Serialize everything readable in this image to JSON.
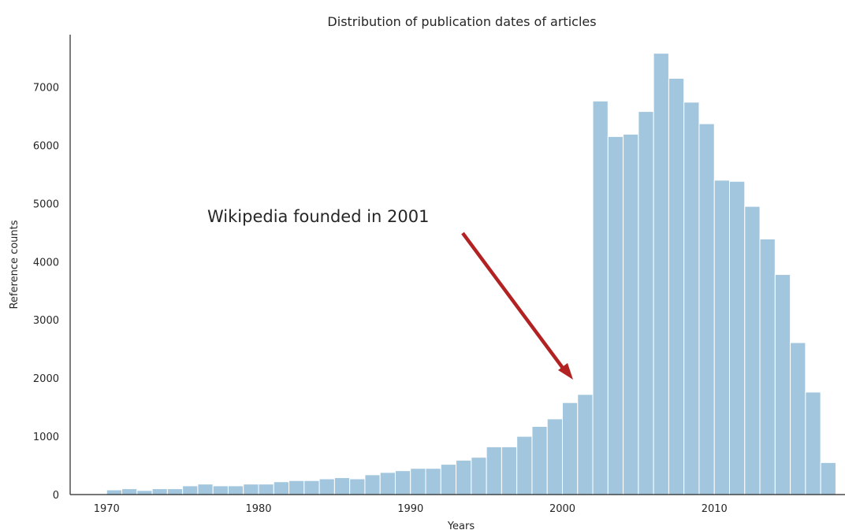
{
  "chart_data": {
    "type": "bar",
    "title": "Distribution of publication dates of articles",
    "xlabel": "Years",
    "ylabel": "Reference counts",
    "xlim": [
      1967.6,
      2018.6
    ],
    "ylim": [
      0,
      7900
    ],
    "xticks": [
      1970,
      1980,
      1990,
      2000,
      2010
    ],
    "yticks": [
      0,
      1000,
      2000,
      3000,
      4000,
      5000,
      6000,
      7000
    ],
    "bin_start": 1970,
    "bin_width": 1,
    "values": [
      80,
      100,
      70,
      100,
      100,
      150,
      180,
      150,
      150,
      180,
      180,
      220,
      240,
      240,
      270,
      290,
      270,
      340,
      380,
      410,
      450,
      450,
      520,
      590,
      640,
      820,
      820,
      1000,
      1170,
      1300,
      1580,
      1720,
      6760,
      6150,
      6190,
      6580,
      7580,
      7150,
      6740,
      6370,
      5400,
      5380,
      4950,
      4390,
      3780,
      2610,
      1760,
      550
    ],
    "bar_color": "#a2c6de",
    "grid": false,
    "annotation": {
      "text": "Wikipedia founded in 2001",
      "target": [
        2001,
        1950
      ],
      "arrow_color": "#b22222"
    }
  }
}
